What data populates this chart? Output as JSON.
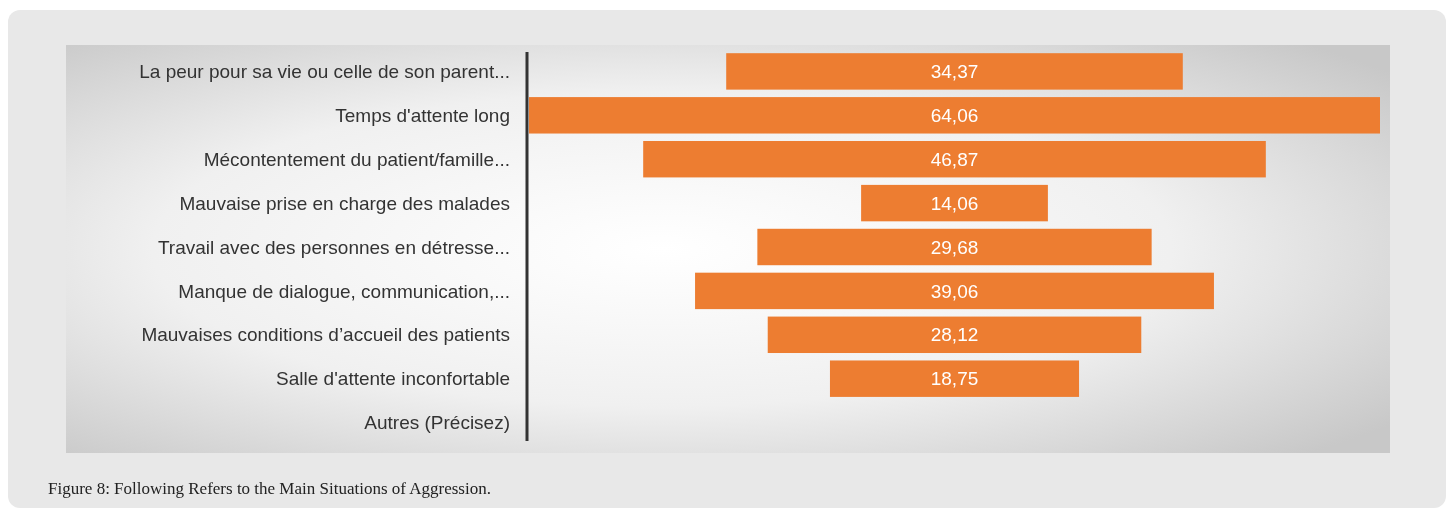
{
  "chart_data": {
    "type": "other",
    "categories": [
      "La peur pour sa vie ou celle de son parent...",
      "Temps d'attente long",
      "Mécontentement du patient/famille...",
      "Mauvaise prise en charge des malades",
      "Travail avec des personnes en détresse...",
      "Manque de dialogue, communication,...",
      "Mauvaises conditions d’accueil des patients",
      "Salle d'attente inconfortable",
      "Autres (Précisez)"
    ],
    "values": [
      34.37,
      64.06,
      46.87,
      14.06,
      29.68,
      39.06,
      28.12,
      18.75,
      null
    ],
    "color": "#ed7d31",
    "data_labels": true,
    "value_labels": [
      "34,37",
      "64,06",
      "46,87",
      "14,06",
      "29,68",
      "39,06",
      "28,12",
      "18,75",
      null
    ],
    "annotations": [
      "Figure 8: Following Refers to the Main Situations of Aggression."
    ]
  }
}
